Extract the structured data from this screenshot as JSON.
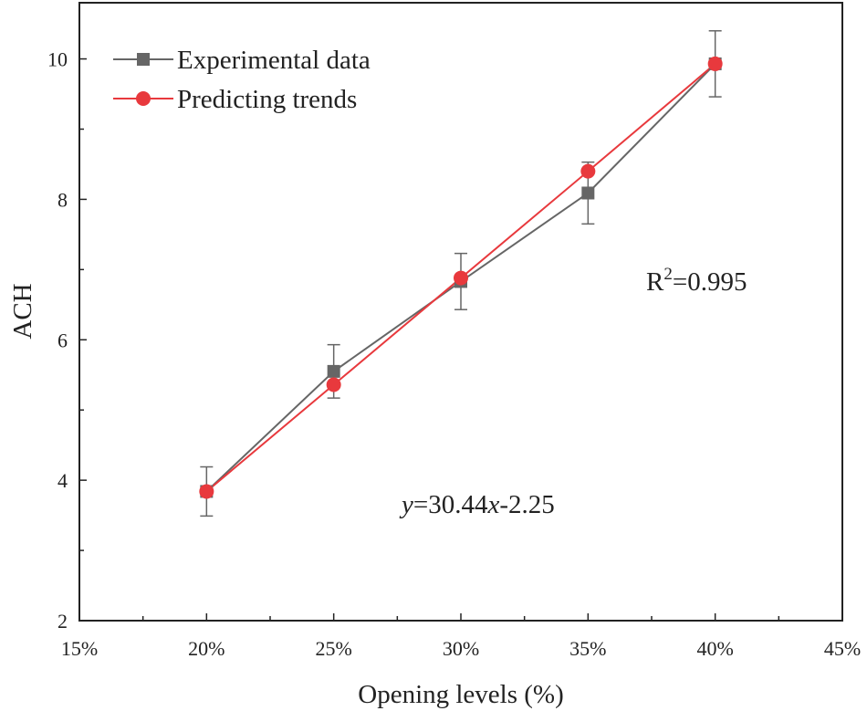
{
  "chart_data": {
    "type": "line",
    "title": "",
    "xlabel": "Opening levels (%)",
    "ylabel": "ACH",
    "x_ticks": [
      "15%",
      "20%",
      "25%",
      "30%",
      "35%",
      "40%",
      "45%"
    ],
    "x_tick_values": [
      15,
      20,
      25,
      30,
      35,
      40,
      45
    ],
    "xlim": [
      15,
      45
    ],
    "y_ticks": [
      "2",
      "4",
      "6",
      "8",
      "10"
    ],
    "y_tick_values": [
      2,
      4,
      6,
      8,
      10
    ],
    "ylim": [
      2,
      10.8
    ],
    "grid": false,
    "legend_position": "top-left",
    "series": [
      {
        "name": "Experimental data",
        "color": "#666666",
        "marker": "square",
        "x": [
          20,
          25,
          30,
          35,
          40
        ],
        "values": [
          3.84,
          5.55,
          6.83,
          8.09,
          9.93
        ],
        "error": [
          0.35,
          0.38,
          0.4,
          0.44,
          0.47
        ]
      },
      {
        "name": "Predicting trends",
        "color": "#e8393d",
        "marker": "circle",
        "x": [
          20,
          25,
          30,
          35,
          40
        ],
        "values": [
          3.84,
          5.36,
          6.88,
          8.4,
          9.93
        ]
      }
    ],
    "annotations": {
      "equation_prefix": "y",
      "equation_mid": "=30.44",
      "equation_var": "x",
      "equation_suffix": "-2.25",
      "r2_prefix": "R",
      "r2_exponent": "2",
      "r2_value": "=0.995"
    }
  }
}
